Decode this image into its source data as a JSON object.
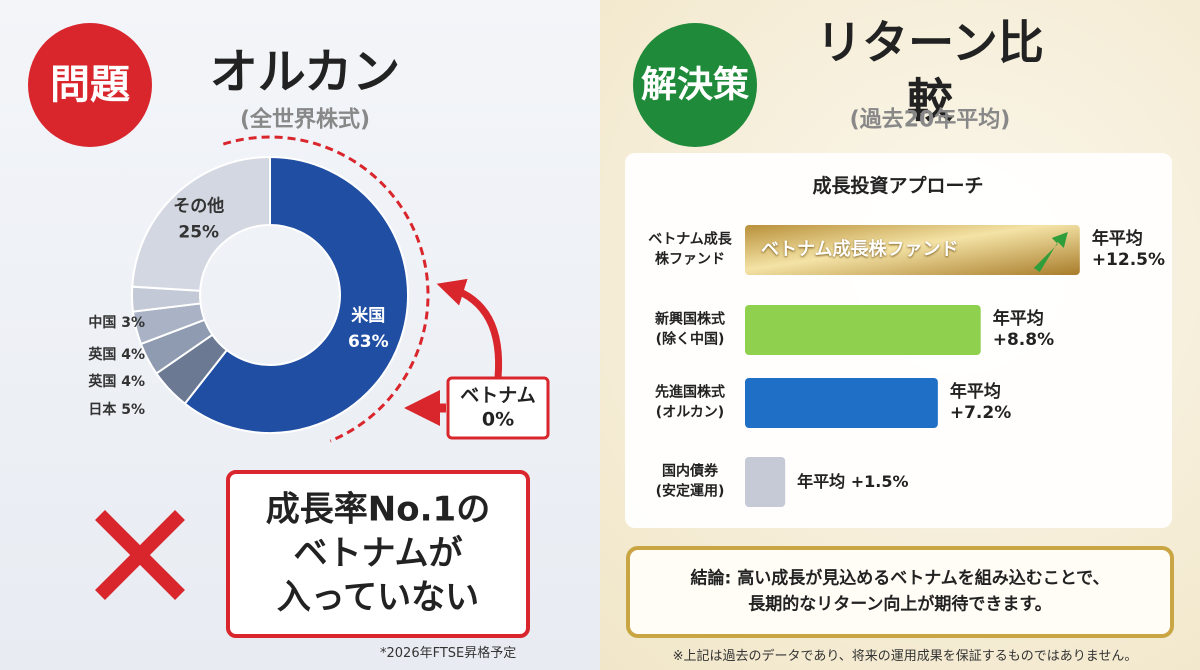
{
  "left": {
    "badge": "問題",
    "title": "オルカン",
    "subtitle": "(全世界株式)",
    "callout": "ベトナム\n0%",
    "message": "成長率No.1の\nベトナムが\n入っていない",
    "footnote": "*2026年FTSE昇格予定"
  },
  "right": {
    "badge": "解決策",
    "title": "リターン比較",
    "subtitle": "(過去20年平均)",
    "conclusion": "結論: 高い成長が見込めるベトナムを組み込むことで、\n長期的なリターン向上が期待できます。",
    "footnote": "※上記は過去のデータであり、将来の運用成果を保証するものではありません。"
  },
  "chart_data": [
    {
      "type": "donut",
      "categories": [
        "米国",
        "日本",
        "英国",
        "英国",
        "中国",
        "その他"
      ],
      "values": [
        63,
        5,
        4,
        4,
        3,
        25
      ],
      "value_labels": [
        "63%",
        "5%",
        "4%",
        "4%",
        "3%",
        "25%"
      ],
      "colors": [
        "#1f4ea3",
        "#6b7a92",
        "#8e9bb0",
        "#a9b3c5",
        "#c3c9d6",
        "#d3d7e1"
      ]
    },
    {
      "type": "hbar",
      "title": "成長投資アプローチ",
      "categories": [
        "ベトナム成長\n株ファンド",
        "新興国株式\n(除く中国)",
        "先進国株式\n(オルカン)",
        "国内債券\n(安定運用)"
      ],
      "values": [
        12.5,
        8.8,
        7.2,
        1.5
      ],
      "value_labels": [
        "年平均\n+12.5%",
        "年平均\n+8.8%",
        "年平均\n+7.2%",
        "年平均 +1.5%"
      ],
      "colors": [
        "#c9a544",
        "#8fd14f",
        "#1f6fc6",
        "#c5cad6"
      ],
      "bar_text": "ベトナム成長株ファンド",
      "xlim": [
        0,
        14
      ]
    }
  ]
}
